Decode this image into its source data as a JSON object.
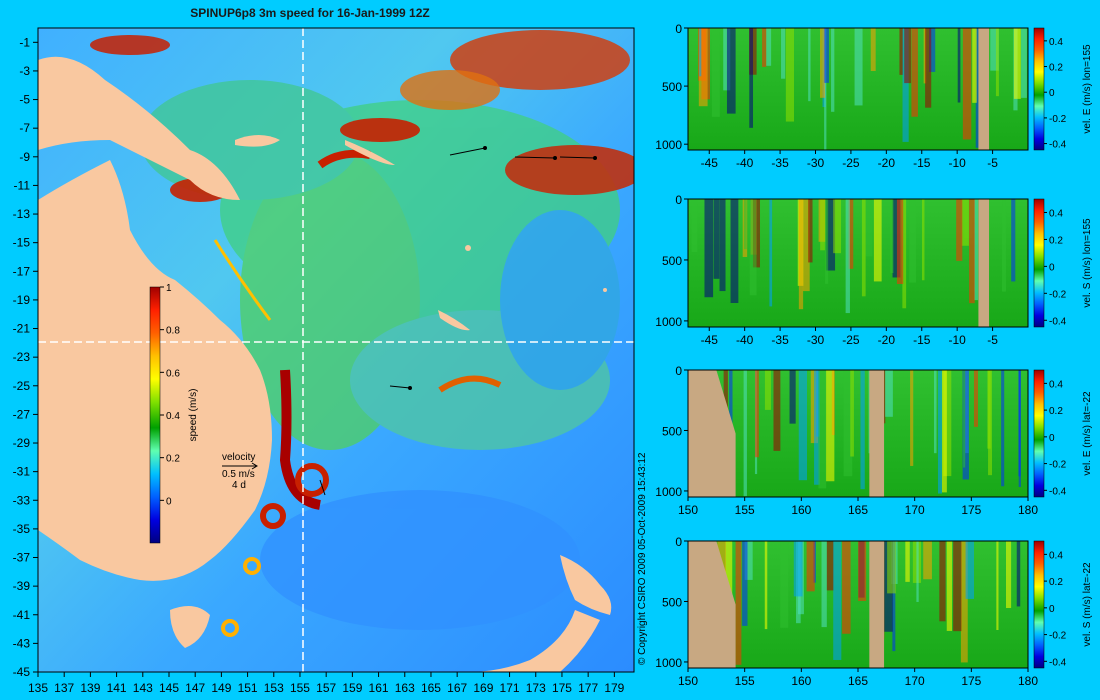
{
  "colors": {
    "background": "#00ccff",
    "land": "#f9c8a0",
    "section_land": "#c8a882",
    "crosshair": "#ffffff",
    "colormap": [
      "#000080",
      "#0000e0",
      "#0060ff",
      "#00c0ff",
      "#60ffb0",
      "#30c020",
      "#00a000",
      "#80e000",
      "#ffff00",
      "#ffa000",
      "#ff3000",
      "#a00000"
    ]
  },
  "chart_data": [
    {
      "type": "heatmap",
      "id": "speed-map",
      "title": "SPINUP6p8 3m speed for 16-Jan-1999 12Z",
      "x_ticks": [
        "135",
        "137",
        "139",
        "141",
        "143",
        "145",
        "147",
        "149",
        "151",
        "153",
        "155",
        "157",
        "159",
        "161",
        "163",
        "165",
        "167",
        "169",
        "171",
        "173",
        "175",
        "177",
        "179"
      ],
      "y_ticks": [
        "-1",
        "-3",
        "-5",
        "-7",
        "-9",
        "-11",
        "-13",
        "-15",
        "-17",
        "-19",
        "-21",
        "-23",
        "-25",
        "-27",
        "-29",
        "-31",
        "-33",
        "-35",
        "-37",
        "-39",
        "-41",
        "-43",
        "-45"
      ],
      "xlim": [
        135,
        180.5
      ],
      "ylim": [
        -45,
        0
      ],
      "crosshair": {
        "lon": 155,
        "lat": -22
      },
      "colorbar": {
        "label": "speed (m/s)",
        "ticks": [
          "0",
          "0.2",
          "0.4",
          "0.6",
          "0.8",
          "1"
        ],
        "range": [
          -0.2,
          1.0
        ]
      },
      "velocity_key": {
        "label": "velocity",
        "speed": "0.5 m/s",
        "duration": "4 d"
      }
    },
    {
      "type": "heatmap",
      "id": "section-1",
      "xlim": [
        -48,
        0
      ],
      "ylim": [
        0,
        1050
      ],
      "x_ticks": [
        "-45",
        "-40",
        "-35",
        "-30",
        "-25",
        "-20",
        "-15",
        "-10",
        "-5"
      ],
      "y_ticks": [
        "0",
        "500",
        "1000"
      ],
      "colorbar": {
        "label": "vel. E (m/s) lon=155",
        "ticks": [
          "0.4",
          "0.2",
          "0",
          "-0.2",
          "-0.4"
        ],
        "range": [
          -0.45,
          0.5
        ]
      }
    },
    {
      "type": "heatmap",
      "id": "section-2",
      "xlim": [
        -48,
        0
      ],
      "ylim": [
        0,
        1050
      ],
      "x_ticks": [
        "-45",
        "-40",
        "-35",
        "-30",
        "-25",
        "-20",
        "-15",
        "-10",
        "-5"
      ],
      "y_ticks": [
        "0",
        "500",
        "1000"
      ],
      "colorbar": {
        "label": "vel. S (m/s) lon=155",
        "ticks": [
          "0.4",
          "0.2",
          "0",
          "-0.2",
          "-0.4"
        ],
        "range": [
          -0.45,
          0.5
        ]
      }
    },
    {
      "type": "heatmap",
      "id": "section-3",
      "xlim": [
        150,
        180
      ],
      "ylim": [
        0,
        1050
      ],
      "x_ticks": [
        "150",
        "155",
        "160",
        "165",
        "170",
        "175",
        "180"
      ],
      "y_ticks": [
        "0",
        "500",
        "1000"
      ],
      "colorbar": {
        "label": "vel. E (m/s) lat=-22",
        "ticks": [
          "0.4",
          "0.2",
          "0",
          "-0.2",
          "-0.4"
        ],
        "range": [
          -0.45,
          0.5
        ]
      }
    },
    {
      "type": "heatmap",
      "id": "section-4",
      "xlim": [
        150,
        180
      ],
      "ylim": [
        0,
        1050
      ],
      "x_ticks": [
        "150",
        "155",
        "160",
        "165",
        "170",
        "175",
        "180"
      ],
      "y_ticks": [
        "0",
        "500",
        "1000"
      ],
      "colorbar": {
        "label": "vel. S (m/s) lat=-22",
        "ticks": [
          "0.4",
          "0.2",
          "0",
          "-0.2",
          "-0.4"
        ],
        "range": [
          -0.45,
          0.5
        ]
      }
    }
  ],
  "copyright": "© Copyright CSIRO 2009   05-Oct-2009 15:43:12"
}
